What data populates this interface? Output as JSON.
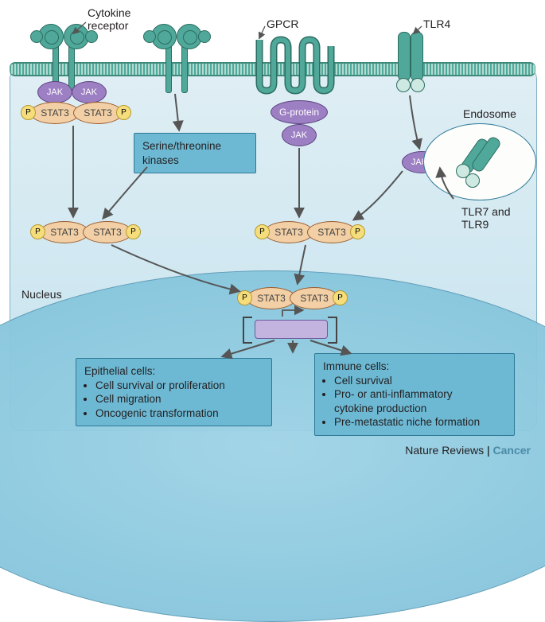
{
  "labels": {
    "cytokine_receptor": "Cytokine\nreceptor",
    "gpcr": "GPCR",
    "tlr4": "TLR4",
    "endosome": "Endosome",
    "tlr79": "TLR7 and\nTLR9",
    "nucleus": "Nucleus",
    "serthr_box": "Serine/threonine\nkinases"
  },
  "proteins": {
    "jak": "JAK",
    "jakq": "JAK?",
    "stat3": "STAT3",
    "p": "P",
    "gprotein": "G-protein"
  },
  "boxes": {
    "epi": {
      "title": "Epithelial cells:",
      "items": [
        "Cell survival or proliferation",
        "Cell migration",
        "Oncogenic transformation"
      ]
    },
    "imm": {
      "title": "Immune cells:",
      "items": [
        "Cell survival",
        "Pro- or anti-inflammatory\ncytokine production",
        "Pre-metastatic niche formation"
      ]
    }
  },
  "credit": {
    "nr": "Nature Reviews",
    "c": "Cancer"
  },
  "colors": {
    "teal": "#4fa89a",
    "purple": "#9d7fc3",
    "stat": "#f2cfa5",
    "phos": "#f6dd7b",
    "box": "#6db9d4",
    "arrow": "#555"
  }
}
